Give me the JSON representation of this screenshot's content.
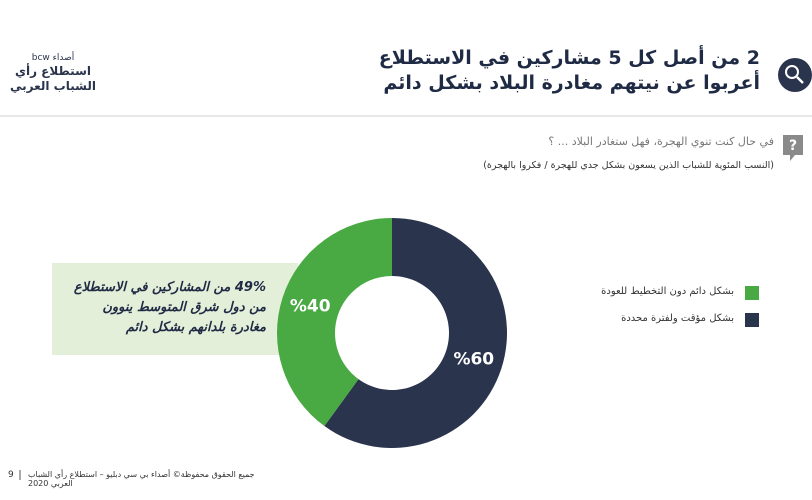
{
  "logo": {
    "brand": "أصداء bcw",
    "name": "استطلاع رأي الشباب العربي"
  },
  "chart_data": {
    "type": "pie",
    "title": "2 من أصل كل 5 مشاركين في الاستطلاع أعربوا عن نيتهم مغادرة البلاد بشكل دائم",
    "question": "في حال كنت تنوي الهجرة، فهل ستغادر البلاد ... ؟",
    "subtitle": "(النسب المئوية للشباب الذين يسعون بشكل جدي للهجرة / فكروا بالهجرة)",
    "annotation": "49% من المشاركين في الاستطلاع من دول شرق المتوسط ينوون مغادرة بلدانهم بشكل دائم",
    "categories": [
      "بشكل دائم دون التخطيط للعودة",
      "بشكل مؤقت ولفترة محددة"
    ],
    "values": [
      40,
      60
    ],
    "value_labels": [
      "%40",
      "%60"
    ],
    "colors": [
      "#49a942",
      "#2a344d"
    ]
  },
  "footer": {
    "page": "9",
    "text": "جميع الحقوق محفوظة© أصداء بي سي دبليو – استطلاع رأي الشباب العربي 2020"
  }
}
